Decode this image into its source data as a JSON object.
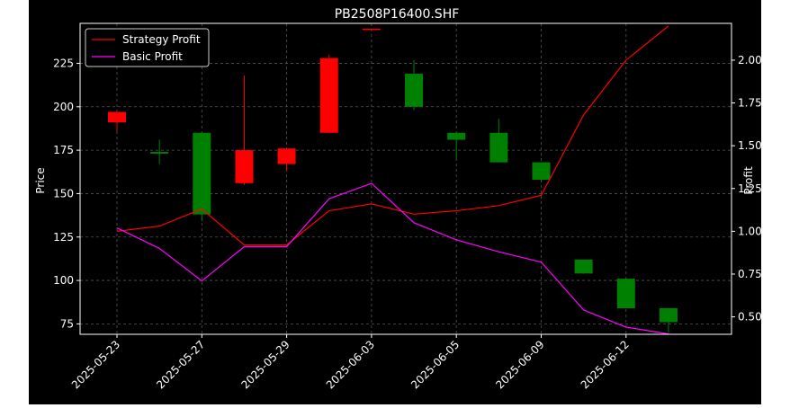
{
  "chart_data": {
    "type": "candlestick",
    "title": "PB2508P16400.SHF",
    "ylabel": "Price",
    "ylabel_right": "Profit",
    "xlabel": "",
    "ylim": [
      69,
      248
    ],
    "ylim_right": [
      0.398,
      2.215
    ],
    "grid": true,
    "legend_position": "top-left",
    "x_tick_labels": [
      "2025-05-23",
      "2025-05-27",
      "2025-05-29",
      "2025-06-03",
      "2025-06-05",
      "2025-06-09",
      "2025-06-12"
    ],
    "y_ticks": [
      75,
      100,
      125,
      150,
      175,
      200,
      225
    ],
    "y_ticks_right": [
      0.5,
      0.75,
      1.0,
      1.25,
      1.5,
      1.75,
      2.0
    ],
    "y_tick_labels_right": [
      "0.50",
      "0.75",
      "1.00",
      "1.25",
      "1.50",
      "1.75",
      "2.00"
    ],
    "colors": {
      "up": "#ff0000",
      "down": "#008000",
      "strategy": "#ff0000",
      "basic": "#ff00ff"
    },
    "candles": [
      {
        "open": 191,
        "high": 197,
        "low": 186,
        "close": 197
      },
      {
        "open": 174,
        "high": 181,
        "low": 167,
        "close": 173
      },
      {
        "open": 185,
        "high": 185,
        "low": 134,
        "close": 138
      },
      {
        "open": 156,
        "high": 218,
        "low": 155,
        "close": 175
      },
      {
        "open": 167,
        "high": 176,
        "low": 163,
        "close": 176
      },
      {
        "open": 185,
        "high": 230,
        "low": 185,
        "close": 228
      },
      {
        "open": 245,
        "high": 245,
        "low": 245,
        "close": 245
      },
      {
        "open": 219,
        "high": 227,
        "low": 198,
        "close": 200
      },
      {
        "open": 185,
        "high": 185,
        "low": 170,
        "close": 181
      },
      {
        "open": 185,
        "high": 193,
        "low": 168,
        "close": 168
      },
      {
        "open": 168,
        "high": 168,
        "low": 157,
        "close": 158
      },
      {
        "open": 112,
        "high": 112,
        "low": 104,
        "close": 104
      },
      {
        "open": 101,
        "high": 101,
        "low": 84,
        "close": 84
      },
      {
        "open": 84,
        "high": 84,
        "low": 70,
        "close": 76
      }
    ],
    "series": [
      {
        "name": "Strategy Profit",
        "values": [
          1.0,
          1.03,
          1.13,
          0.92,
          0.92,
          1.12,
          1.16,
          1.1,
          1.12,
          1.15,
          1.21,
          1.68,
          2.0,
          2.2
        ]
      },
      {
        "name": "Basic Profit",
        "values": [
          1.02,
          0.9,
          0.71,
          0.91,
          0.91,
          1.19,
          1.28,
          1.05,
          0.95,
          0.88,
          0.82,
          0.54,
          0.44,
          0.4
        ]
      }
    ]
  }
}
